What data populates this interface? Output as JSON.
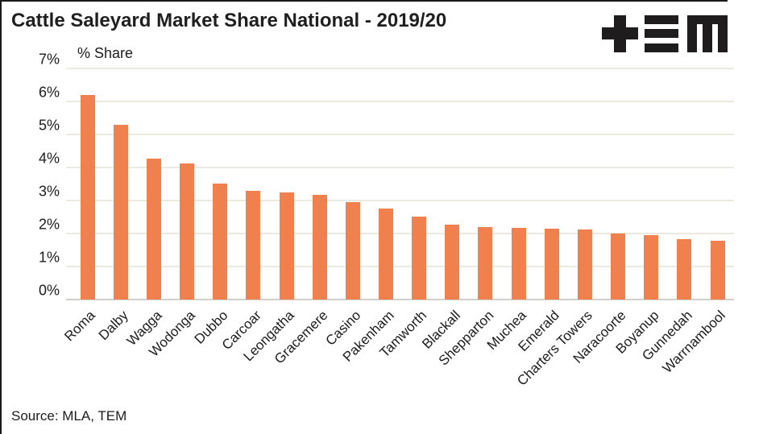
{
  "page": {
    "title": "Cattle Saleyard Market Share National - 2019/20",
    "source": "Source: MLA, TEM"
  },
  "logo": {
    "name": "TEM",
    "color": "#1e1c1c"
  },
  "chart_data": {
    "type": "bar",
    "title": "Cattle Saleyard Market Share National - 2019/20",
    "axis_label": "% Share",
    "xlabel": "",
    "ylabel": "% Share",
    "categories": [
      "Roma",
      "Dalby",
      "Wagga",
      "Wodonga",
      "Dubbo",
      "Carcoar",
      "Leongatha",
      "Gracemere",
      "Casino",
      "Pakenham",
      "Tamworth",
      "Blackall",
      "Shepparton",
      "Muchea",
      "Emerald",
      "Charters Towers",
      "Naracoorte",
      "Boyanup",
      "Gunnedah",
      "Warrnambool"
    ],
    "values": [
      6.2,
      5.3,
      4.28,
      4.13,
      3.52,
      3.3,
      3.24,
      3.18,
      2.96,
      2.75,
      2.52,
      2.26,
      2.2,
      2.18,
      2.15,
      2.12,
      2.01,
      1.95,
      1.84,
      1.79
    ],
    "ylim": [
      0,
      7
    ],
    "ytick_step": 1,
    "ytick_labels": [
      "0%",
      "1%",
      "2%",
      "3%",
      "4%",
      "5%",
      "6%",
      "7%"
    ],
    "grid": true,
    "legend": "none",
    "bar_color": "#f0804d",
    "gridline_color": "#eceade",
    "axis_line_color": "#d2d0cc"
  }
}
